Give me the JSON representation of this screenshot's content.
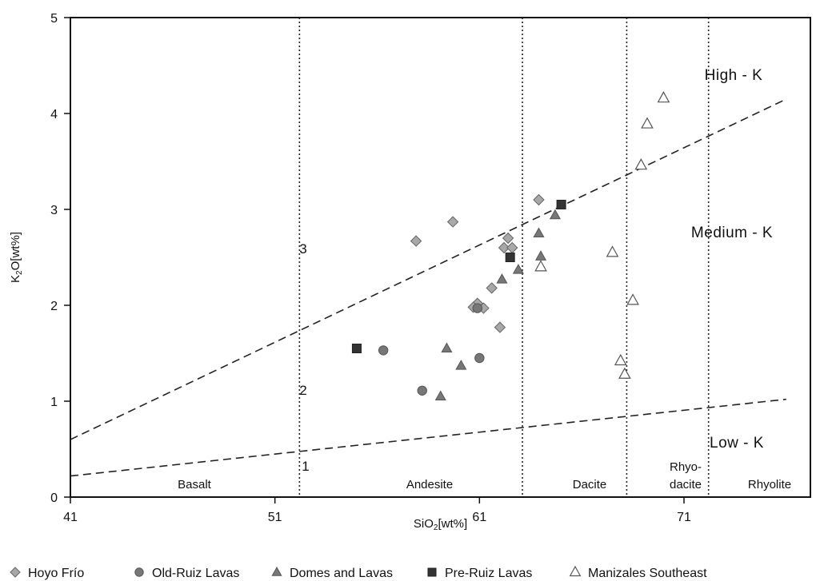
{
  "chart_data": {
    "type": "scatter",
    "xlabel": "SiO2[wt%]",
    "ylabel": "K2O[wt%]",
    "xlim": [
      41,
      76
    ],
    "ylim": [
      0,
      5
    ],
    "xticks": [
      41,
      51,
      61,
      71
    ],
    "yticks": [
      0,
      1,
      2,
      3,
      4,
      5
    ],
    "grid": false,
    "legend_position": "bottom",
    "field_boundaries": [
      52.2,
      63.1,
      68.2,
      72.2
    ],
    "rock_fields": [
      "Basalt",
      "Andesite",
      "Dacite",
      "Rhyo-",
      "dacite",
      "Rhyolite"
    ],
    "series_labels": [
      "High - K",
      "Medium - K",
      "Low - K"
    ],
    "number_labels": [
      "1",
      "2",
      "3"
    ],
    "boundary_lines": [
      {
        "name": "upper",
        "x": [
          41,
          76
        ],
        "y": [
          0.6,
          4.15
        ]
      },
      {
        "name": "lower",
        "x": [
          41,
          76
        ],
        "y": [
          0.22,
          1.02
        ]
      }
    ],
    "series": [
      {
        "name": "Hoyo Frío",
        "marker": "diamond",
        "color": "#a8a8a8",
        "x": [
          57.9,
          59.7,
          62.2,
          62.4,
          62.6,
          61.6,
          60.9,
          61.2,
          60.7,
          62.0,
          63.9
        ],
        "y": [
          2.67,
          2.87,
          2.6,
          2.7,
          2.6,
          2.18,
          2.02,
          1.97,
          1.98,
          1.77,
          3.1
        ]
      },
      {
        "name": "Old-Ruiz Lavas",
        "marker": "circle",
        "color": "#777777",
        "x": [
          56.3,
          58.2,
          61.0,
          60.9
        ],
        "y": [
          1.53,
          1.11,
          1.45,
          1.97
        ]
      },
      {
        "name": "Domes and Lavas",
        "marker": "triangle",
        "color": "#777777",
        "x": [
          59.1,
          60.1,
          62.1,
          62.9,
          63.9,
          64.0,
          64.7,
          59.4
        ],
        "y": [
          1.05,
          1.37,
          2.27,
          2.37,
          2.75,
          2.51,
          2.94,
          1.55
        ]
      },
      {
        "name": "Pre-Ruiz Lavas",
        "marker": "square",
        "color": "#333333",
        "x": [
          55.0,
          62.5,
          65.0
        ],
        "y": [
          1.55,
          2.5,
          3.05
        ]
      },
      {
        "name": "Manizales Southeast",
        "marker": "triangle-open",
        "color": "#555555",
        "x": [
          70.0,
          69.2,
          68.9,
          67.5,
          68.5,
          67.9,
          68.1,
          64.0
        ],
        "y": [
          4.16,
          3.89,
          3.46,
          2.55,
          2.05,
          1.42,
          1.28,
          2.4
        ]
      }
    ]
  }
}
